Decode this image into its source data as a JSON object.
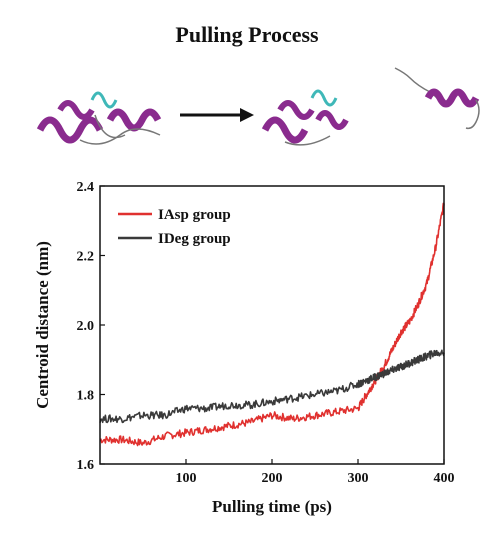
{
  "header": {
    "title": "Pulling Process"
  },
  "chart_data": {
    "type": "line",
    "title": "Pulling Process",
    "xlabel": "Pulling time (ps)",
    "ylabel": "Centroid distance (nm)",
    "xlim": [
      0,
      400
    ],
    "ylim": [
      1.6,
      2.4
    ],
    "xticks": [
      100,
      200,
      300,
      400
    ],
    "xtick_labels": [
      "100",
      "200",
      "300",
      "400"
    ],
    "yticks": [
      1.6,
      1.8,
      2.0,
      2.2,
      2.4
    ],
    "ytick_labels": [
      "1.6",
      "1.8",
      "2.0",
      "2.2",
      "2.4"
    ],
    "grid": false,
    "legend_position": "top-left",
    "x": [
      0,
      25,
      50,
      75,
      100,
      125,
      150,
      175,
      200,
      225,
      250,
      275,
      300,
      310,
      320,
      330,
      340,
      350,
      360,
      370,
      380,
      390,
      400
    ],
    "series": [
      {
        "name": "IAsp group",
        "color": "#e0312f",
        "values": [
          1.67,
          1.67,
          1.66,
          1.68,
          1.69,
          1.7,
          1.71,
          1.72,
          1.74,
          1.73,
          1.74,
          1.75,
          1.76,
          1.8,
          1.84,
          1.88,
          1.93,
          1.98,
          2.01,
          2.06,
          2.12,
          2.22,
          2.35
        ]
      },
      {
        "name": "IDeg group",
        "color": "#3a3a3a",
        "values": [
          1.73,
          1.73,
          1.74,
          1.74,
          1.76,
          1.76,
          1.77,
          1.77,
          1.78,
          1.79,
          1.8,
          1.81,
          1.83,
          1.84,
          1.85,
          1.86,
          1.87,
          1.88,
          1.89,
          1.9,
          1.91,
          1.92,
          1.92
        ]
      }
    ]
  },
  "colors": {
    "protein_helix": "#8a2b8e",
    "protein_loop": "#3fb8b8",
    "arrow": "#111111"
  }
}
